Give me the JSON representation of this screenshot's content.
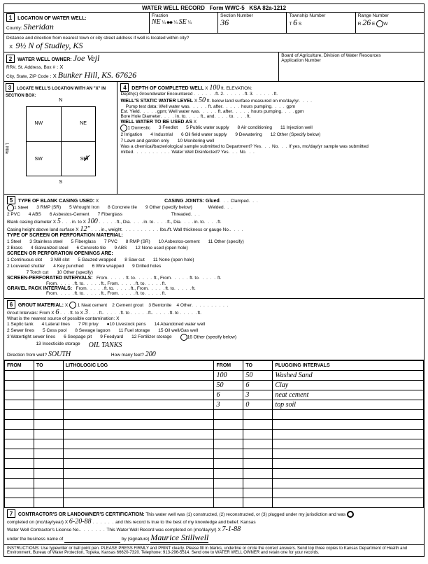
{
  "form": {
    "title": "WATER WELL RECORD",
    "form_no": "Form WWC-5",
    "ksa": "KSA 82a-1212"
  },
  "header": {
    "county_label": "County:",
    "county": "Sheridan",
    "fraction_label": "Fraction",
    "fraction1": "NE",
    "fraction2": "¼",
    "fraction3": "SE",
    "fraction4": "¼",
    "section_label": "Section Number",
    "section": "36",
    "township_label": "Township Number",
    "township_t": "T",
    "township": "6",
    "township_s": "S",
    "range_label": "Range Number",
    "range_r": "R",
    "range": "26",
    "range_e": "E",
    "range_w": "W"
  },
  "location": {
    "label": "LOCATION OF WATER WELL:",
    "distance_label": "Distance and direction from nearest town or city street address if well is located within city?",
    "distance": "9½ N of Studley, KS"
  },
  "owner": {
    "label": "WATER WELL OWNER:",
    "name": "Joe Vejl",
    "rr_label": "RR#, St. Address, Box #",
    "city_label": "City, State, ZIP Code",
    "city": "Bunker Hill, KS. 67626",
    "board_label": "Board of Agriculture, Division of Water Resources",
    "app_label": "Application Number"
  },
  "section3": {
    "label": "LOCATE WELL'S LOCATION WITH AN \"X\" IN SECTION BOX:",
    "n": "N",
    "s": "S",
    "e": "E",
    "w": "W",
    "nw": "NW",
    "ne": "NE",
    "sw": "SW",
    "se": "SE",
    "mile": "1 Mile"
  },
  "section4": {
    "label": "DEPTH OF COMPLETED WELL",
    "depth": "100",
    "elevation_label": "ft. ELEVATION:",
    "depths_enc": "Depth(s) Groundwater Encountered",
    "static_label": "WELL'S STATIC WATER LEVEL",
    "static": "50",
    "static_suffix": "ft. below land surface measured on mo/day/yr",
    "pump_label": "Pump test data:",
    "well_was": "Well water was",
    "after": "ft. after",
    "hours_pumping": "hours pumping",
    "gpm": "gpm",
    "est_yield": "Est. Yield",
    "bore_hole": "Bore Hole Diameter",
    "in_to": "in. to",
    "ft_and": "ft., and",
    "to_ft": "to",
    "well_use": "WELL WATER TO BE USED AS",
    "use_opts": [
      "1 Domestic",
      "3 Feedlot",
      "5 Public water supply",
      "8 Air conditioning",
      "11 Injection well",
      "2 Irrigation",
      "4 Industrial",
      "6 Oil field water supply",
      "9 Dewatering",
      "12 Other (Specify below)",
      "",
      "",
      "7 Lawn and garden only",
      "10 Monitoring well"
    ],
    "chem_label": "Was a chemical/bacteriological sample submitted to Department? Yes",
    "no_label": "No",
    "if_yes": "If yes, mo/day/yr sample was submitted",
    "disinfect": "Water Well Disinfected? Yes",
    "no2": "No"
  },
  "section5": {
    "label": "TYPE OF BLANK CASING USED:",
    "opts": [
      "1 Steel",
      "2 PVC",
      "3 RMP (SR)",
      "4 ABS",
      "5 Wrought Iron",
      "6 Asbestos-Cement",
      "7 Fiberglass",
      "8 Concrete tile",
      "9 Other (specify below)"
    ],
    "joints_label": "CASING JOINTS: Glued",
    "clamped": "Clamped",
    "welded": "Welded",
    "threaded": "Threaded",
    "blank_dia_label": "Blank casing diameter",
    "blank_dia": "5",
    "blank_to": "100",
    "casing_height_label": "Casing height above land surface",
    "casing_height": "12\"",
    "weight": "in., weight",
    "wall_label": "lbs./ft. Wall thickness or gauge No.",
    "screen_label": "TYPE OF SCREEN OR PERFORATION MATERIAL:",
    "screen_opts": [
      "1 Steel",
      "2 Brass",
      "3 Stainless steel",
      "4 Galvanized steel",
      "5 Fiberglass",
      "6 Concrete tile",
      "7 PVC",
      "8 RMP (SR)",
      "9 ABS",
      "10 Asbestos-cement",
      "11 Other (specify)",
      "12 None used (open hole)"
    ],
    "openings_label": "SCREEN OR PERFORATION OPENINGS ARE:",
    "opening_opts": [
      "1 Continuous slot",
      "2 Louvered shutter",
      "3 Mill slot",
      "4 Key punched",
      "5 Gauzed wrapped",
      "6 Wire wrapped",
      "7 Torch cut",
      "8 Saw cut",
      "9 Drilled holes",
      "10 Other (specify)",
      "11 None (open hole)"
    ],
    "perf_intervals": "SCREEN-PERFORATED INTERVALS:",
    "gravel_intervals": "GRAVEL PACK INTERVALS:",
    "from": "From",
    "to": "ft. to",
    "ft_from": "ft., From",
    "ft_to2": "ft. to",
    "ft_end": "ft."
  },
  "section6": {
    "label": "GROUT MATERIAL:",
    "grout_opts": [
      "1 Neat cement",
      "2 Cement grout",
      "3 Bentonite",
      "4 Other"
    ],
    "intervals_label": "Grout Intervals: From",
    "from_val": "6",
    "to_val": "3",
    "nearest_label": "What is the nearest source of possible contamination:",
    "contam_opts": [
      "1 Septic tank",
      "2 Sewer lines",
      "3 Watertight sewer lines",
      "4 Lateral lines",
      "5 Cess pool",
      "6 Seepage pit",
      "7 Pit privy",
      "8 Sewage lagoon",
      "9 Feedyard",
      "10 Livestock pens",
      "11 Fuel storage",
      "12 Fertilizer storage",
      "13 Insecticide storage",
      "14 Abandoned water well",
      "15 Oil well/Gas well",
      "16 Other (specify below)"
    ],
    "other_spec": "OIL TANKS",
    "direction_label": "Direction from well?",
    "direction": "SOUTH",
    "how_many": "How many feet?",
    "feet": "200"
  },
  "log": {
    "headers": [
      "FROM",
      "TO",
      "LITHOLOGIC LOG",
      "FROM",
      "TO",
      "PLUGGING INTERVALS"
    ],
    "rows": [
      [
        "",
        "",
        "",
        "100",
        "50",
        "Washed Sand"
      ],
      [
        "",
        "",
        "",
        "50",
        "6",
        "Clay"
      ],
      [
        "",
        "",
        "",
        "6",
        "3",
        "neat cement"
      ],
      [
        "",
        "",
        "",
        "3",
        "0",
        "top soil"
      ],
      [
        "",
        "",
        "",
        "",
        "",
        ""
      ],
      [
        "",
        "",
        "",
        "",
        "",
        ""
      ],
      [
        "",
        "",
        "",
        "",
        "",
        ""
      ],
      [
        "",
        "",
        "",
        "",
        "",
        ""
      ],
      [
        "",
        "",
        "",
        "",
        "",
        ""
      ],
      [
        "",
        "",
        "",
        "",
        "",
        ""
      ],
      [
        "",
        "",
        "",
        "",
        "",
        ""
      ],
      [
        "",
        "",
        "",
        "",
        "",
        ""
      ],
      [
        "",
        "",
        "",
        "",
        "",
        ""
      ],
      [
        "",
        "",
        "",
        "",
        "",
        ""
      ]
    ]
  },
  "section7": {
    "label": "CONTRACTOR'S OR LANDOWNER'S CERTIFICATION:",
    "text1": "This water well was (1) constructed, (2) reconstructed, or (3) plugged under my jurisdiction and was",
    "completed_label": "completed on (mo/day/year)",
    "completed": "6-20-88",
    "text2": "and this record is true to the best of my knowledge and belief. Kansas",
    "license_label": "Water Well Contractor's License No.",
    "text3": "This Water Well Record was completed on (mo/day/yr)",
    "rec_date": "7-1-88",
    "business_label": "under the business name of",
    "sig_label": "by (signature)",
    "signature": "Maurice Stillwell"
  },
  "instructions": "INSTRUCTIONS: Use typewriter or ball point pen. PLEASE PRESS FIRMLY and PRINT clearly. Please fill in blanks, underline or circle the correct answers. Send top three copies to Kansas Department of Health and Environment, Bureau of Water Protection, Topeka, Kansas 66620-7320. Telephone: 913-296-5514. Send one to WATER WELL OWNER and retain one for your records.",
  "colors": {
    "border": "#000000",
    "bg": "#ffffff",
    "text": "#000000"
  }
}
